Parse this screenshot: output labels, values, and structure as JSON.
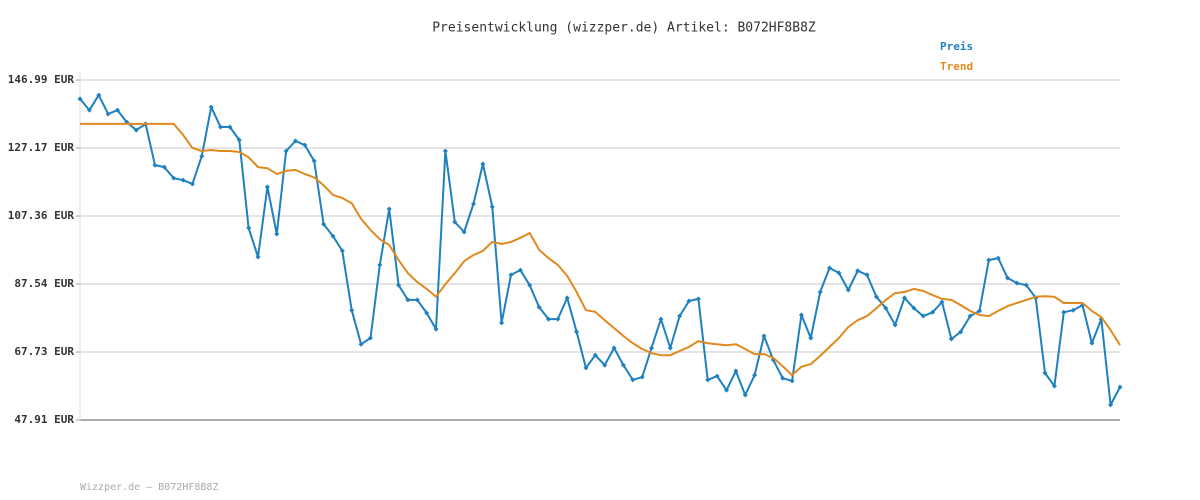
{
  "chart_data": {
    "type": "line",
    "title": "Preisentwicklung (wizzper.de) Artikel: B072HF8B8Z",
    "footer": "Wizzper.de – B072HF8B8Z",
    "categories": [
      null,
      null,
      null,
      null,
      null,
      null,
      null,
      null,
      null,
      null,
      null,
      null,
      null,
      null,
      null,
      null,
      null,
      null,
      null,
      null,
      null,
      null,
      null,
      null,
      null,
      null,
      null,
      null,
      null,
      null,
      null,
      null,
      null,
      null,
      null,
      null,
      null,
      null,
      null,
      null,
      null,
      null,
      null,
      null,
      null,
      null,
      null,
      null,
      null,
      null,
      null,
      null,
      null,
      null,
      null,
      null,
      null,
      null,
      null,
      null,
      null,
      null,
      null,
      null,
      null,
      null,
      null,
      null,
      null,
      null,
      null,
      null,
      null,
      null,
      null,
      null,
      null,
      null,
      null,
      null,
      null,
      null,
      null,
      null,
      null,
      null,
      null,
      null,
      null,
      null,
      null,
      null,
      null,
      null,
      null,
      null,
      null,
      null,
      null,
      null,
      null,
      null,
      null,
      null,
      null,
      null,
      null,
      null,
      null,
      null,
      null,
      null
    ],
    "ylim": [
      47.91,
      146.99
    ],
    "yticks": [
      {
        "value": 146.99,
        "label": "146.99 EUR"
      },
      {
        "value": 127.17,
        "label": "127.17 EUR"
      },
      {
        "value": 107.36,
        "label": "107.36 EUR"
      },
      {
        "value": 87.54,
        "label": "87.54 EUR"
      },
      {
        "value": 67.73,
        "label": "67.73 EUR"
      },
      {
        "value": 47.91,
        "label": "47.91 EUR"
      }
    ],
    "grid": true,
    "series": [
      {
        "name": "Preis",
        "color": "#1f80c0",
        "markers": true,
        "values": [
          141.5,
          138.2,
          142.6,
          137.1,
          138.2,
          134.7,
          132.4,
          134.2,
          122.2,
          121.6,
          118.4,
          117.8,
          116.7,
          124.8,
          139.1,
          133.3,
          133.3,
          129.5,
          103.9,
          95.4,
          115.8,
          102.1,
          126.3,
          129.2,
          128.0,
          123.4,
          105.0,
          101.5,
          97.2,
          79.9,
          70.0,
          71.8,
          93.1,
          109.4,
          87.2,
          82.9,
          82.9,
          79.1,
          74.4,
          126.3,
          105.6,
          102.7,
          110.9,
          122.5,
          110.0,
          76.2,
          90.2,
          91.6,
          87.2,
          80.8,
          77.3,
          77.3,
          83.5,
          73.6,
          63.1,
          66.8,
          63.9,
          68.9,
          63.9,
          59.6,
          60.4,
          68.9,
          77.3,
          68.9,
          78.2,
          82.6,
          83.2,
          59.6,
          60.7,
          56.6,
          62.2,
          55.2,
          61.0,
          72.4,
          65.4,
          60.1,
          59.3,
          78.5,
          71.8,
          85.2,
          92.2,
          90.8,
          85.8,
          91.4,
          90.2,
          83.8,
          80.5,
          75.6,
          83.5,
          80.5,
          78.2,
          79.3,
          82.3,
          71.5,
          73.6,
          78.2,
          79.7,
          94.5,
          95.1,
          89.3,
          87.8,
          87.2,
          83.5,
          61.6,
          57.8,
          79.3,
          79.9,
          81.4,
          70.3,
          77.3,
          52.3,
          57.5
        ]
      },
      {
        "name": "Trend",
        "color": "#e08a1e",
        "markers": false,
        "values": [
          134.2,
          134.2,
          134.2,
          134.2,
          134.2,
          134.2,
          134.2,
          134.2,
          134.2,
          134.2,
          134.2,
          131.0,
          127.2,
          126.3,
          126.6,
          126.3,
          126.3,
          126.0,
          124.5,
          121.6,
          121.3,
          119.6,
          120.5,
          120.8,
          119.6,
          118.6,
          116.3,
          113.5,
          112.6,
          111.1,
          106.5,
          103.3,
          100.6,
          98.9,
          94.5,
          90.7,
          88.1,
          86.1,
          83.8,
          87.5,
          90.7,
          94.2,
          96.0,
          97.2,
          99.8,
          99.2,
          99.8,
          101.0,
          102.4,
          97.5,
          95.1,
          93.1,
          89.9,
          85.2,
          79.9,
          79.4,
          77.0,
          74.7,
          72.4,
          70.3,
          68.6,
          67.4,
          66.8,
          66.8,
          68.0,
          69.2,
          70.9,
          70.3,
          70.0,
          69.7,
          70.0,
          68.6,
          67.1,
          67.1,
          66.0,
          63.6,
          61.0,
          63.4,
          64.2,
          66.6,
          69.2,
          71.8,
          75.0,
          77.0,
          78.2,
          80.5,
          82.9,
          84.9,
          85.2,
          86.1,
          85.5,
          84.3,
          83.2,
          82.9,
          81.4,
          79.7,
          78.5,
          78.2,
          79.7,
          81.1,
          82.0,
          82.9,
          83.8,
          84.0,
          83.8,
          82.0,
          82.0,
          82.0,
          79.7,
          77.9,
          74.1,
          69.7
        ]
      }
    ]
  }
}
